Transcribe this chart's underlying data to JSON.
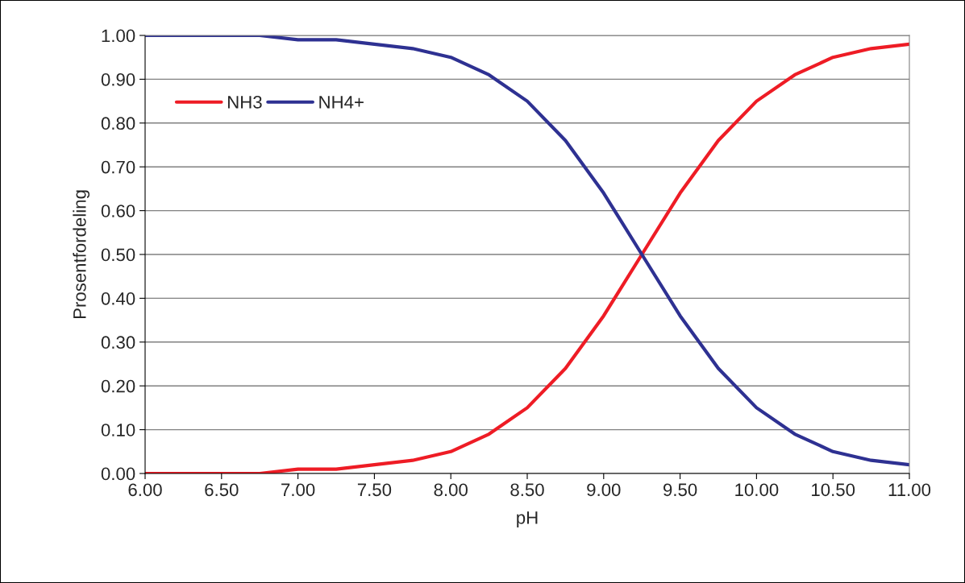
{
  "chart_data": {
    "type": "line",
    "xlabel": "pH",
    "ylabel": "Prosentfordeling",
    "x": [
      6.0,
      6.25,
      6.5,
      6.75,
      7.0,
      7.25,
      7.5,
      7.75,
      8.0,
      8.25,
      8.5,
      8.75,
      9.0,
      9.25,
      9.5,
      9.75,
      10.0,
      10.25,
      10.5,
      10.75,
      11.0
    ],
    "series": [
      {
        "name": "NH3",
        "color": "#ee1c25",
        "values": [
          0.0,
          0.0,
          0.0,
          0.0,
          0.01,
          0.01,
          0.02,
          0.03,
          0.05,
          0.09,
          0.15,
          0.24,
          0.36,
          0.5,
          0.64,
          0.76,
          0.85,
          0.91,
          0.95,
          0.97,
          0.98
        ]
      },
      {
        "name": "NH4+",
        "color": "#2e3192",
        "values": [
          1.0,
          1.0,
          1.0,
          1.0,
          0.99,
          0.99,
          0.98,
          0.97,
          0.95,
          0.91,
          0.85,
          0.76,
          0.64,
          0.5,
          0.36,
          0.24,
          0.15,
          0.09,
          0.05,
          0.03,
          0.02
        ]
      }
    ],
    "xlim": [
      6.0,
      11.0
    ],
    "xticks": [
      {
        "value": 6.0,
        "label": "6.00"
      },
      {
        "value": 6.5,
        "label": "6.50"
      },
      {
        "value": 7.0,
        "label": "7.00"
      },
      {
        "value": 7.5,
        "label": "7.50"
      },
      {
        "value": 8.0,
        "label": "8.00"
      },
      {
        "value": 8.5,
        "label": "8.50"
      },
      {
        "value": 9.0,
        "label": "9.00"
      },
      {
        "value": 9.5,
        "label": "9.50"
      },
      {
        "value": 10.0,
        "label": "10.00"
      },
      {
        "value": 10.5,
        "label": "10.50"
      },
      {
        "value": 11.0,
        "label": "11.00"
      }
    ],
    "ylim": [
      0,
      1
    ],
    "yticks": [
      {
        "value": 0,
        "label": "0.00"
      },
      {
        "value": 0.1,
        "label": "0.10"
      },
      {
        "value": 0.2,
        "label": "0.20"
      },
      {
        "value": 0.3,
        "label": "0.30"
      },
      {
        "value": 0.4,
        "label": "0.40"
      },
      {
        "value": 0.5,
        "label": "0.50"
      },
      {
        "value": 0.6,
        "label": "0.60"
      },
      {
        "value": 0.7,
        "label": "0.70"
      },
      {
        "value": 0.8,
        "label": "0.80"
      },
      {
        "value": 0.9,
        "label": "0.90"
      },
      {
        "value": 1.0,
        "label": "1.00"
      }
    ],
    "grid": "y",
    "legend": "top left",
    "marker": "none",
    "line_style": "solid"
  }
}
